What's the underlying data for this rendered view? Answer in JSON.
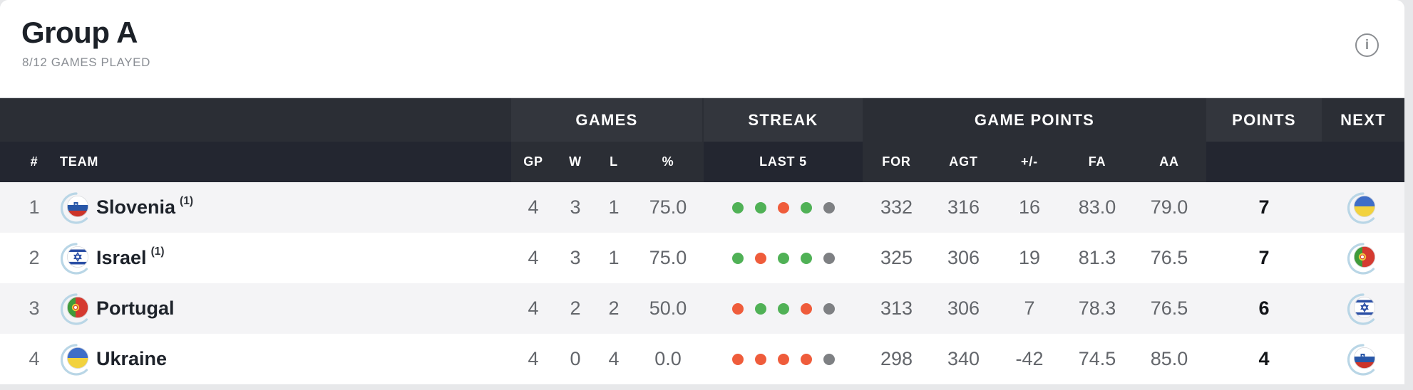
{
  "header": {
    "title": "Group A",
    "subtitle": "8/12 GAMES PLAYED",
    "info_icon": "i"
  },
  "table": {
    "group_headers": {
      "games": "GAMES",
      "streak": "STREAK",
      "game_points": "GAME POINTS",
      "points": "POINTS",
      "next": "NEXT"
    },
    "columns": {
      "rank": "#",
      "team": "TEAM",
      "gp": "GP",
      "w": "W",
      "l": "L",
      "pct": "%",
      "last5": "LAST 5",
      "for": "FOR",
      "agt": "AGT",
      "plus_minus": "+/-",
      "fa": "FA",
      "aa": "AA"
    },
    "colors": {
      "win": "#50b156",
      "loss": "#ef5c3b",
      "none": "#7e8083"
    },
    "rows": [
      {
        "rank": "1",
        "team": "Slovenia",
        "note": "(1)",
        "flag": "slovenia",
        "gp": "4",
        "w": "3",
        "l": "1",
        "pct": "75.0",
        "streak": [
          "W",
          "W",
          "L",
          "W",
          "N"
        ],
        "for": "332",
        "agt": "316",
        "plus_minus": "16",
        "fa": "83.0",
        "aa": "79.0",
        "points": "7",
        "next_flag": "ukraine"
      },
      {
        "rank": "2",
        "team": "Israel",
        "note": "(1)",
        "flag": "israel",
        "gp": "4",
        "w": "3",
        "l": "1",
        "pct": "75.0",
        "streak": [
          "W",
          "L",
          "W",
          "W",
          "N"
        ],
        "for": "325",
        "agt": "306",
        "plus_minus": "19",
        "fa": "81.3",
        "aa": "76.5",
        "points": "7",
        "next_flag": "portugal"
      },
      {
        "rank": "3",
        "team": "Portugal",
        "note": "",
        "flag": "portugal",
        "gp": "4",
        "w": "2",
        "l": "2",
        "pct": "50.0",
        "streak": [
          "L",
          "W",
          "W",
          "L",
          "N"
        ],
        "for": "313",
        "agt": "306",
        "plus_minus": "7",
        "fa": "78.3",
        "aa": "76.5",
        "points": "6",
        "next_flag": "israel"
      },
      {
        "rank": "4",
        "team": "Ukraine",
        "note": "",
        "flag": "ukraine",
        "gp": "4",
        "w": "0",
        "l": "4",
        "pct": "0.0",
        "streak": [
          "L",
          "L",
          "L",
          "L",
          "N"
        ],
        "for": "298",
        "agt": "340",
        "plus_minus": "-42",
        "fa": "74.5",
        "aa": "85.0",
        "points": "4",
        "next_flag": "slovenia"
      }
    ]
  }
}
